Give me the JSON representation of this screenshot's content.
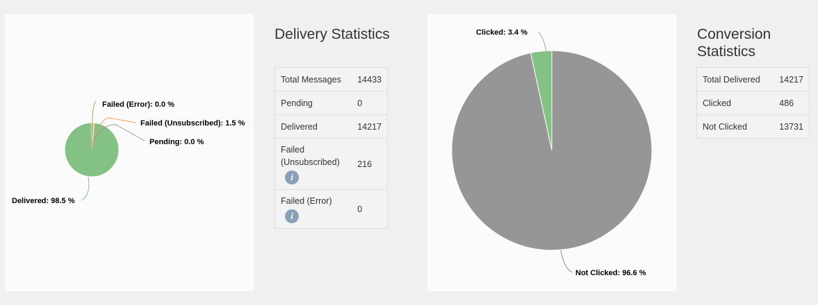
{
  "delivery": {
    "title": "Delivery Statistics",
    "rows": [
      {
        "label": "Total Messages",
        "value": "14433",
        "info": false
      },
      {
        "label": "Pending",
        "value": "0",
        "info": false
      },
      {
        "label": "Delivered",
        "value": "14217",
        "info": false
      },
      {
        "label": "Failed (Unsubscribed)",
        "value": "216",
        "info": true
      },
      {
        "label": "Failed (Error)",
        "value": "0",
        "info": true
      }
    ]
  },
  "conversion": {
    "title": "Conversion Statistics",
    "rows": [
      {
        "label": "Total Delivered",
        "value": "14217"
      },
      {
        "label": "Clicked",
        "value": "486"
      },
      {
        "label": "Not Clicked",
        "value": "13731"
      }
    ]
  },
  "info_icon_glyph": "i",
  "colors": {
    "green": "#84c184",
    "gray": "#969696",
    "orange": "#e8a060",
    "panel": "#fbfbfb",
    "background": "#f0f0f0",
    "info": "#8a9fb8"
  },
  "chart_data": [
    {
      "type": "pie",
      "title": "",
      "slices": [
        {
          "label": "Delivered",
          "value": 98.5,
          "display": "Delivered: 98.5 %",
          "color": "#84c184"
        },
        {
          "label": "Failed (Error)",
          "value": 0.0,
          "display": "Failed (Error): 0.0 %",
          "color": "#c0a060"
        },
        {
          "label": "Failed (Unsubscribed)",
          "value": 1.5,
          "display": "Failed (Unsubscribed): 1.5 %",
          "color": "#e8a060"
        },
        {
          "label": "Pending",
          "value": 0.0,
          "display": "Pending: 0.0 %",
          "color": "#999999"
        }
      ]
    },
    {
      "type": "pie",
      "title": "",
      "slices": [
        {
          "label": "Clicked",
          "value": 3.4,
          "display": "Clicked: 3.4 %",
          "color": "#84c184"
        },
        {
          "label": "Not Clicked",
          "value": 96.6,
          "display": "Not Clicked: 96.6 %",
          "color": "#969696"
        }
      ]
    }
  ]
}
